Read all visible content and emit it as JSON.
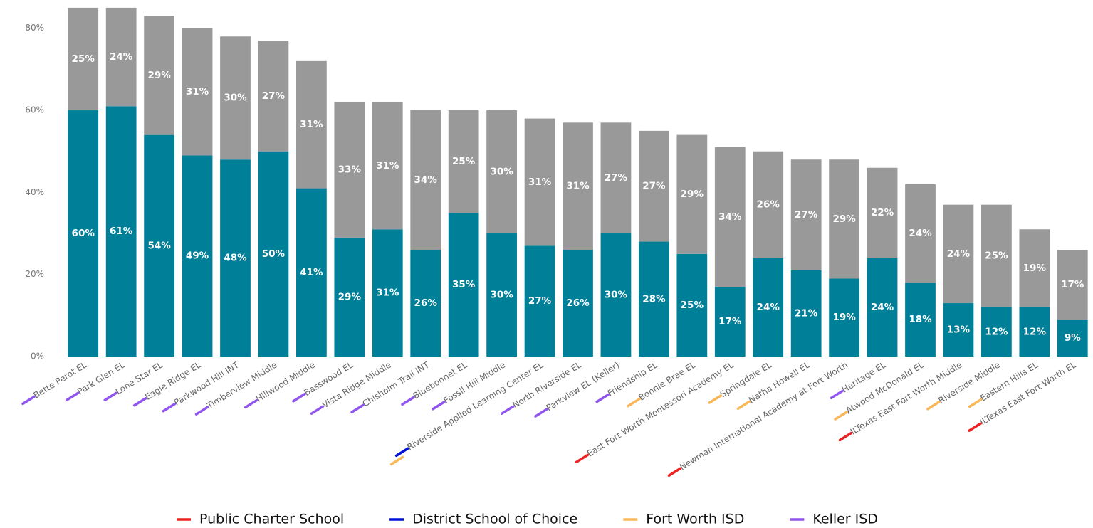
{
  "chart_data": {
    "type": "stacked_bar",
    "categories": [
      "Bette Perot EL",
      "Park Glen EL",
      "Lone Star EL",
      "Eagle Ridge EL",
      "Parkwood Hill INT",
      "Timberview Middle",
      "Hillwood Middle",
      "Basswood EL",
      "Vista Ridge Middle",
      "Chisholm Trail INT",
      "Bluebonnet EL",
      "Fossil Hill Middle",
      "Riverside Applied Learning Center EL",
      "North Riverside EL",
      "Parkview EL (Keller)",
      "Friendship EL",
      "Bonnie Brae EL",
      "East Fort Worth Montessori Academy EL",
      "Springdale EL",
      "Natha Howell EL",
      "Newman International Academy at Fort Worth",
      "Heritage EL",
      "Atwood McDonald EL",
      "ILTexas East Fort Worth Middle",
      "Riverside Middle",
      "Eastern Hills EL",
      "ILTexas East Fort Worth EL"
    ],
    "series": [
      {
        "color": "#007f99",
        "values": [
          60,
          61,
          54,
          49,
          48,
          50,
          41,
          29,
          31,
          26,
          35,
          30,
          27,
          26,
          30,
          28,
          25,
          17,
          24,
          21,
          19,
          24,
          18,
          13,
          12,
          12,
          9
        ],
        "value_labels": [
          "60%",
          "61%",
          "54%",
          "49%",
          "48%",
          "50%",
          "41%",
          "29%",
          "31%",
          "26%",
          "35%",
          "30%",
          "27%",
          "26%",
          "30%",
          "28%",
          "25%",
          "17%",
          "24%",
          "21%",
          "19%",
          "24%",
          "18%",
          "13%",
          "12%",
          "12%",
          "9%"
        ]
      },
      {
        "color": "#999999",
        "values": [
          25,
          24,
          29,
          31,
          30,
          27,
          31,
          33,
          31,
          34,
          25,
          30,
          31,
          31,
          27,
          27,
          29,
          34,
          26,
          27,
          29,
          22,
          24,
          24,
          25,
          19,
          17
        ],
        "value_labels": [
          "25%",
          "24%",
          "29%",
          "31%",
          "30%",
          "27%",
          "31%",
          "33%",
          "31%",
          "34%",
          "25%",
          "30%",
          "31%",
          "31%",
          "27%",
          "27%",
          "29%",
          "34%",
          "26%",
          "27%",
          "29%",
          "22%",
          "24%",
          "24%",
          "25%",
          "19%",
          "17%"
        ]
      }
    ],
    "legend": [
      {
        "name": "Public Charter School",
        "color": "#ee2222"
      },
      {
        "name": "District School of Choice",
        "color": "#0010dd"
      },
      {
        "name": "Fort Worth ISD",
        "color": "#f8b85a"
      },
      {
        "name": "Keller ISD",
        "color": "#8f55ee"
      }
    ],
    "category_groups": [
      [
        3
      ],
      [
        3
      ],
      [
        3
      ],
      [
        3
      ],
      [
        3
      ],
      [
        3
      ],
      [
        3
      ],
      [
        3
      ],
      [
        3
      ],
      [
        3
      ],
      [
        3
      ],
      [
        3
      ],
      [
        1,
        2
      ],
      [
        3
      ],
      [
        3
      ],
      [
        3
      ],
      [
        2
      ],
      [
        0
      ],
      [
        2
      ],
      [
        2
      ],
      [
        0
      ],
      [
        3
      ],
      [
        2
      ],
      [
        0
      ],
      [
        2
      ],
      [
        2
      ],
      [
        0
      ]
    ],
    "ylim": [
      0,
      85.5
    ],
    "yticks": [
      {
        "value": 0,
        "label": "0%"
      },
      {
        "value": 20,
        "label": "20%"
      },
      {
        "value": 40,
        "label": "40%"
      },
      {
        "value": 60,
        "label": "60%"
      },
      {
        "value": 80,
        "label": "80%"
      }
    ]
  }
}
